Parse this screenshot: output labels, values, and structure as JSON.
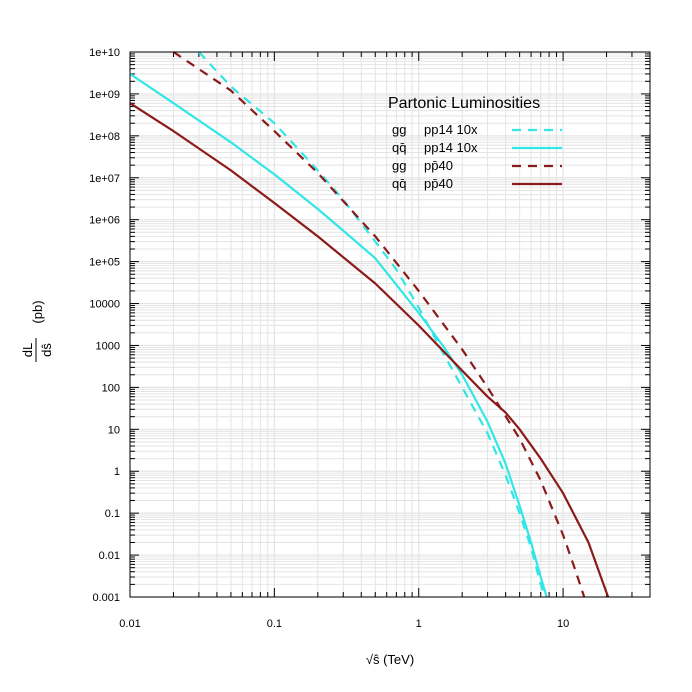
{
  "chart_data": {
    "type": "line",
    "title": "Partonic Luminosities",
    "xlabel": "√ŝ (TeV)",
    "ylabel": "dL/dŝ (pb)",
    "ylabel_top": "dL",
    "ylabel_bottom": "dŝ",
    "ylabel_unit": "(pb)",
    "xscale": "log",
    "yscale": "log",
    "xlim": [
      0.01,
      40
    ],
    "ylim": [
      0.001,
      10000000000
    ],
    "grid": true,
    "legend_position": "top-right",
    "xticks": [
      0.01,
      0.1,
      1,
      10
    ],
    "xtick_labels": [
      "0.01",
      "0.1",
      "1",
      "10"
    ],
    "yticks": [
      0.001,
      0.01,
      0.1,
      1,
      10,
      100,
      1000,
      10000,
      100000,
      1000000,
      10000000,
      100000000,
      1000000000,
      10000000000
    ],
    "ytick_labels": [
      "0.001",
      "0.01",
      "0.1",
      "1",
      "10",
      "100",
      "1000",
      "10000",
      "1e+05",
      "1e+06",
      "1e+07",
      "1e+08",
      "1e+09",
      "1e+10"
    ],
    "series": [
      {
        "name": "gg pp14 10x",
        "label_parton": "gg",
        "label_beam": "pp14  10x",
        "color": "#33e6e6",
        "dashed": true,
        "x": [
          0.03,
          0.05,
          0.1,
          0.2,
          0.3,
          0.5,
          0.7,
          1.0,
          1.5,
          2.0,
          3.0,
          4.0,
          5.0,
          6.0,
          7.0,
          7.5
        ],
        "y": [
          10000000000.0,
          1500000000.0,
          200000000.0,
          15000000.0,
          3000000.0,
          300000.0,
          65000.0,
          8000.0,
          600.0,
          100.0,
          8.0,
          0.8,
          0.1,
          0.015,
          0.002,
          0.001
        ]
      },
      {
        "name": "qq̄ pp14 10x",
        "label_parton": "qq̄",
        "label_beam": "pp14  10x",
        "color": "#33e6e6",
        "dashed": false,
        "x": [
          0.01,
          0.02,
          0.05,
          0.1,
          0.2,
          0.3,
          0.5,
          1.0,
          1.5,
          2.0,
          3.0,
          4.0,
          5.0,
          6.0,
          7.0,
          7.7
        ],
        "y": [
          3000000000.0,
          600000000.0,
          70000000.0,
          12000000.0,
          1800000.0,
          550000.0,
          120000.0,
          6000.0,
          900.0,
          200.0,
          15,
          1.5,
          0.15,
          0.02,
          0.003,
          0.001
        ]
      },
      {
        "name": "gg pp̄40",
        "label_parton": "gg",
        "label_beam": "pp̄40",
        "color": "#8b1a1a",
        "dashed": true,
        "x": [
          0.02,
          0.05,
          0.1,
          0.2,
          0.5,
          1.0,
          2.0,
          3.0,
          5.0,
          7.0,
          10.0,
          12.0,
          14.0
        ],
        "y": [
          10000000000.0,
          1200000000.0,
          130000000.0,
          13000000.0,
          400000.0,
          20000.0,
          800.0,
          100.0,
          6.0,
          0.6,
          0.03,
          0.005,
          0.001
        ]
      },
      {
        "name": "qq̄ pp̄40",
        "label_parton": "qq̄",
        "label_beam": "pp̄40",
        "color": "#8b1a1a",
        "dashed": false,
        "x": [
          0.01,
          0.02,
          0.05,
          0.1,
          0.2,
          0.5,
          1.0,
          2.0,
          3.0,
          4.0,
          5.0,
          7.0,
          10.0,
          15.0,
          20.5
        ],
        "y": [
          600000000.0,
          130000000.0,
          15000000.0,
          2500000.0,
          400000.0,
          30000.0,
          3000.0,
          250.0,
          60,
          25,
          10,
          2,
          0.3,
          0.02,
          0.001
        ]
      }
    ]
  }
}
